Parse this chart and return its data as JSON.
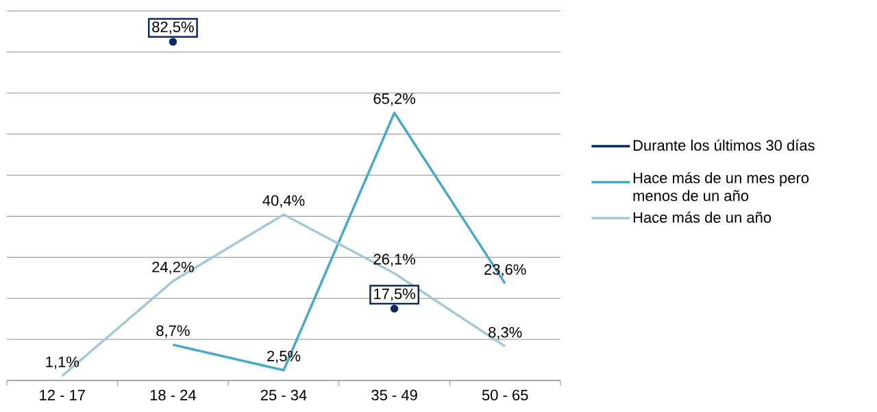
{
  "chart_data": {
    "type": "line",
    "categories": [
      "12 - 17",
      "18 - 24",
      "25 - 34",
      "35 - 49",
      "50 - 65"
    ],
    "series": [
      {
        "name": "Durante los últimos 30 días",
        "type": "scatter",
        "color": "#0d2a5c",
        "values": [
          null,
          82.5,
          null,
          17.5,
          null
        ],
        "value_labels": [
          null,
          "82,5%",
          null,
          "17,5%",
          null
        ]
      },
      {
        "name": "Hace más de un mes pero menos de un año",
        "color": "#4aa8c4",
        "values": [
          null,
          8.7,
          2.5,
          65.2,
          23.6
        ],
        "value_labels": [
          null,
          "8,7%",
          "2,5%",
          "65,2%",
          "23,6%"
        ]
      },
      {
        "name": "Hace más de un año",
        "color": "#a3c9d6",
        "values": [
          1.1,
          24.2,
          40.4,
          26.1,
          8.3
        ],
        "value_labels": [
          "1,1%",
          "24,2%",
          "40,4%",
          "26,1%",
          "8,3%"
        ]
      }
    ],
    "ylim": [
      0,
      90
    ],
    "yticks": [
      {
        "value": 0,
        "label": null
      },
      {
        "value": 10,
        "label": null
      },
      {
        "value": 20,
        "label": null
      },
      {
        "value": 30,
        "label": null
      },
      {
        "value": 40,
        "label": null
      },
      {
        "value": 50,
        "label": null
      },
      {
        "value": 60,
        "label": null
      },
      {
        "value": 70,
        "label": null
      },
      {
        "value": 80,
        "label": null
      },
      {
        "value": 90,
        "label": null
      }
    ],
    "tick_labels": "x",
    "grid": "y",
    "legend": "right",
    "line_style": "solid"
  }
}
